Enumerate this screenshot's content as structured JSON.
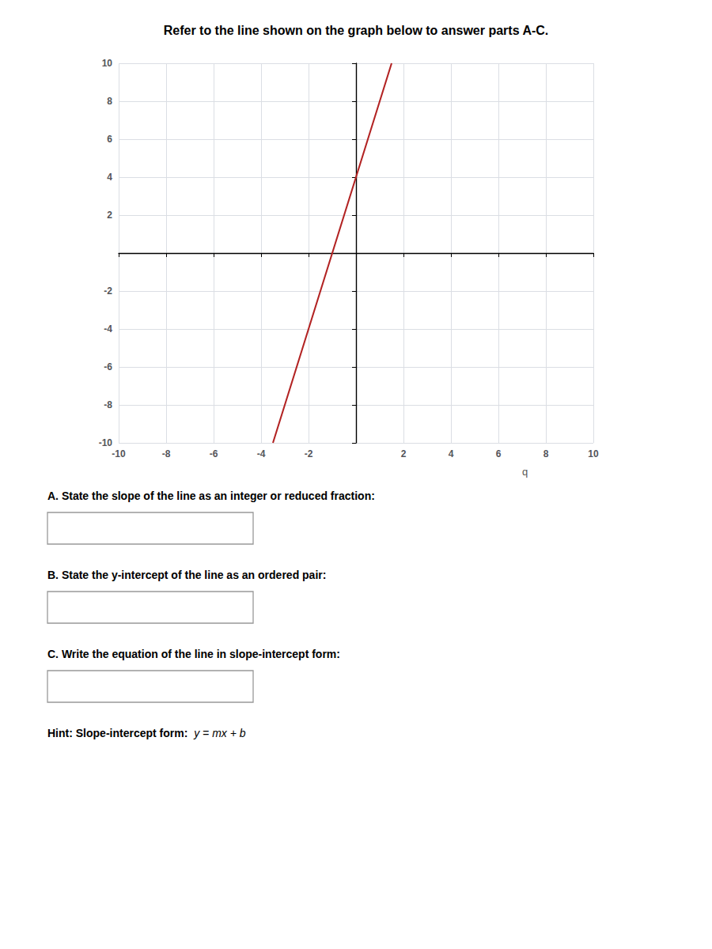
{
  "chart_data": {
    "type": "line",
    "title": "Refer to the line shown on the graph below to answer parts A-C.",
    "x": [
      -3.5,
      1.5
    ],
    "values": [
      -10,
      10
    ],
    "color": "#b22222",
    "xlim": [
      -10,
      10
    ],
    "ylim": [
      -10,
      10
    ],
    "xticks": [
      -10,
      -8,
      -6,
      -4,
      -2,
      2,
      4,
      6,
      8,
      10
    ],
    "yticks": [
      -10,
      -8,
      -6,
      -4,
      -2,
      2,
      4,
      6,
      8,
      10
    ],
    "grid": true,
    "annotations": [
      "A. State the slope of the line as an integer or reduced fraction:",
      "B. State the y-intercept of the line as an ordered pair:",
      "C. Write the equation of the line in slope-intercept form:",
      "Hint: Slope-intercept form: ",
      "y = mx + b",
      "q"
    ]
  }
}
